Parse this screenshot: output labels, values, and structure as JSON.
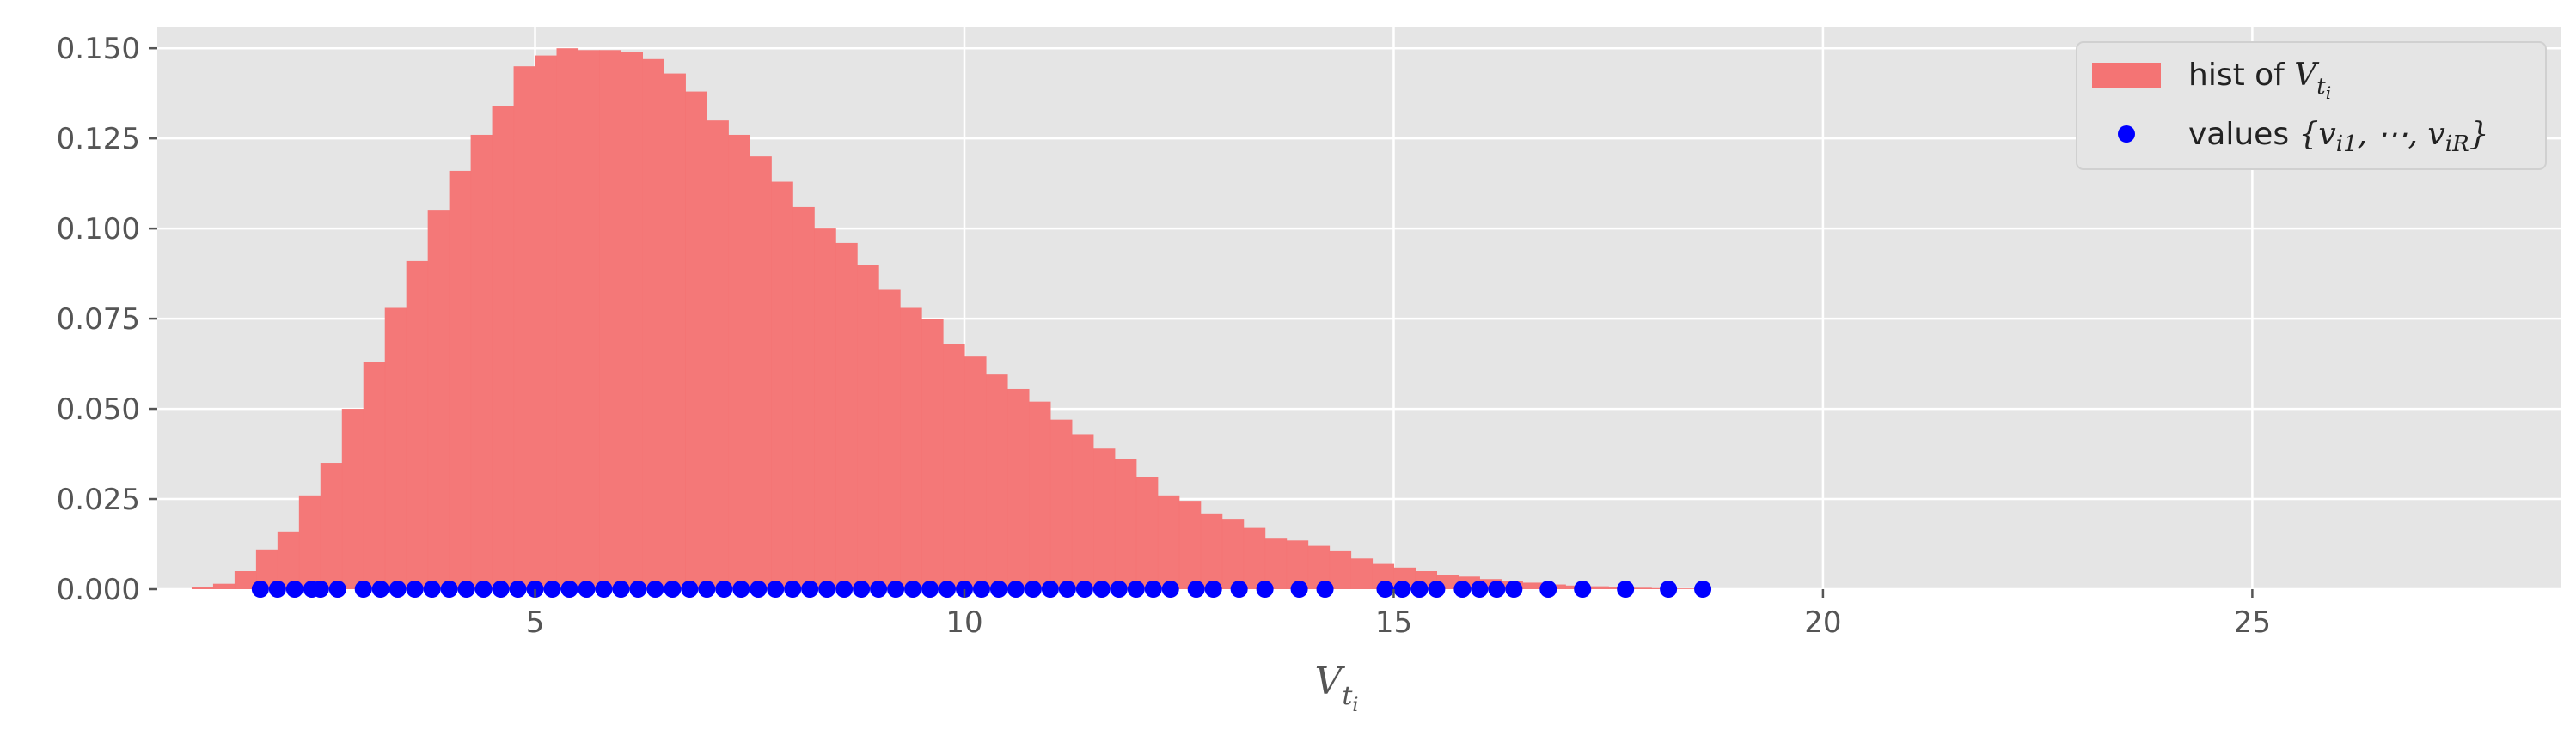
{
  "chart_data": {
    "type": "bar",
    "title": "",
    "xlabel": "V_{t_i}",
    "ylabel": "",
    "xlim": [
      0.6,
      28.6
    ],
    "ylim": [
      0,
      0.156
    ],
    "grid": true,
    "legend_position": "top-right",
    "xticks": [
      5,
      10,
      15,
      20,
      25
    ],
    "xtick_labels": [
      "5",
      "10",
      "15",
      "20",
      "25"
    ],
    "yticks": [
      0,
      0.025,
      0.05,
      0.075,
      0.1,
      0.125,
      0.15
    ],
    "ytick_labels": [
      "0.000",
      "0.025",
      "0.050",
      "0.075",
      "0.100",
      "0.125",
      "0.150"
    ],
    "colors": {
      "histogram": "#f47474",
      "points": "#0000ff",
      "background": "#e5e5e5",
      "grid": "#ffffff"
    },
    "series": [
      {
        "name": "hist of V_{t_i}",
        "kind": "histogram",
        "bin_edges": [
          1.0,
          1.25,
          1.5,
          1.75,
          2.0,
          2.25,
          2.5,
          2.75,
          3.0,
          3.25,
          3.5,
          3.75,
          4.0,
          4.25,
          4.5,
          4.75,
          5.0,
          5.25,
          5.5,
          5.75,
          6.0,
          6.25,
          6.5,
          6.75,
          7.0,
          7.25,
          7.5,
          7.75,
          8.0,
          8.25,
          8.5,
          8.75,
          9.0,
          9.25,
          9.5,
          9.75,
          10.0,
          10.25,
          10.5,
          10.75,
          11.0,
          11.25,
          11.5,
          11.75,
          12.0,
          12.25,
          12.5,
          12.75,
          13.0,
          13.25,
          13.5,
          13.75,
          14.0,
          14.25,
          14.5,
          14.75,
          15.0,
          15.25,
          15.5,
          15.75,
          16.0,
          16.25,
          16.5,
          16.75,
          17.0,
          17.25,
          17.5,
          17.75,
          18.0,
          18.25,
          18.5
        ],
        "values": [
          0.0005,
          0.0015,
          0.005,
          0.011,
          0.016,
          0.026,
          0.035,
          0.05,
          0.063,
          0.078,
          0.091,
          0.105,
          0.116,
          0.126,
          0.134,
          0.145,
          0.148,
          0.15,
          0.1495,
          0.1495,
          0.149,
          0.147,
          0.143,
          0.138,
          0.13,
          0.126,
          0.12,
          0.113,
          0.106,
          0.1,
          0.096,
          0.09,
          0.083,
          0.078,
          0.075,
          0.068,
          0.0645,
          0.0595,
          0.0555,
          0.052,
          0.047,
          0.043,
          0.039,
          0.036,
          0.031,
          0.026,
          0.0245,
          0.021,
          0.0195,
          0.017,
          0.014,
          0.0135,
          0.012,
          0.0105,
          0.0085,
          0.007,
          0.006,
          0.005,
          0.004,
          0.0035,
          0.0028,
          0.0022,
          0.0018,
          0.0013,
          0.001,
          0.0008,
          0.0006,
          0.0004,
          0.0003,
          0.0002
        ]
      },
      {
        "name": "values {v_{i1}, ⋯, v_{iR}}",
        "kind": "scatter",
        "x": [
          1.8,
          2.0,
          2.2,
          2.4,
          2.5,
          2.7,
          3.0,
          3.2,
          3.4,
          3.6,
          3.8,
          4.0,
          4.2,
          4.4,
          4.6,
          4.8,
          5.0,
          5.2,
          5.4,
          5.6,
          5.8,
          6.0,
          6.2,
          6.4,
          6.6,
          6.8,
          7.0,
          7.2,
          7.4,
          7.6,
          7.8,
          8.0,
          8.2,
          8.4,
          8.6,
          8.8,
          9.0,
          9.2,
          9.4,
          9.6,
          9.8,
          10.0,
          10.2,
          10.4,
          10.6,
          10.8,
          11.0,
          11.2,
          11.4,
          11.6,
          11.8,
          12.0,
          12.2,
          12.4,
          12.7,
          12.9,
          13.2,
          13.5,
          13.9,
          14.2,
          14.9,
          15.1,
          15.3,
          15.5,
          15.8,
          16.0,
          16.2,
          16.4,
          16.8,
          17.2,
          17.7,
          18.2,
          18.6
        ],
        "y": 0
      }
    ]
  },
  "legend": {
    "hist_label_prefix": "hist of ",
    "hist_label_var": "V",
    "hist_label_sub": "t",
    "hist_label_subsub": "i",
    "values_label_prefix": "values ",
    "values_label_math": "{v",
    "values_label_sub1": "i1",
    "values_label_mid": ", ⋯, v",
    "values_label_sub2": "iR",
    "values_label_close": "}"
  },
  "xaxis_label": {
    "var": "V",
    "sub": "t",
    "subsub": "i"
  }
}
